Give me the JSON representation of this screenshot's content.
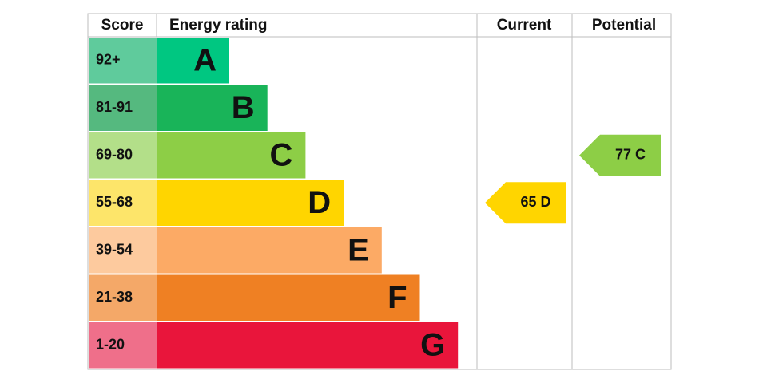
{
  "chart_data": {
    "type": "epc",
    "headers": {
      "score": "Score",
      "rating": "Energy rating",
      "current": "Current",
      "potential": "Potential"
    },
    "bands": [
      {
        "score": "92+",
        "letter": "A",
        "color": "#00c781",
        "tint": "#5fcb9c"
      },
      {
        "score": "81-91",
        "letter": "B",
        "color": "#19b459",
        "tint": "#55b97f"
      },
      {
        "score": "69-80",
        "letter": "C",
        "color": "#8dce46",
        "tint": "#b3df89"
      },
      {
        "score": "55-68",
        "letter": "D",
        "color": "#ffd500",
        "tint": "#fde56a"
      },
      {
        "score": "39-54",
        "letter": "E",
        "color": "#fcaa65",
        "tint": "#fdca9e"
      },
      {
        "score": "21-38",
        "letter": "F",
        "color": "#ef8023",
        "tint": "#f4a868"
      },
      {
        "score": "1-20",
        "letter": "G",
        "color": "#e9153b",
        "tint": "#ef6f8a"
      }
    ],
    "current": {
      "value": 65,
      "label": "65 D"
    },
    "potential": {
      "value": 77,
      "label": "77 C"
    }
  }
}
